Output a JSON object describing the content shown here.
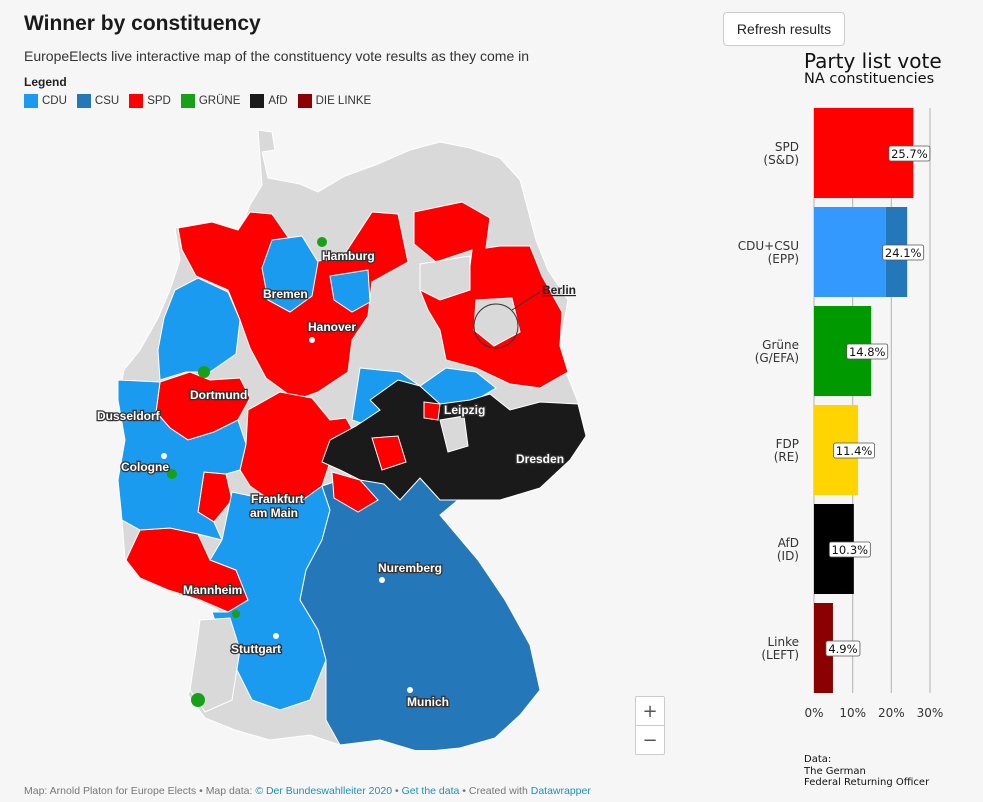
{
  "header": {
    "title": "Winner by constituency",
    "subtitle": "EuropeElects live interactive map of the constituency vote results as they come in"
  },
  "legend": {
    "title": "Legend",
    "items": [
      {
        "label": "CDU",
        "color": "#1a9bf0"
      },
      {
        "label": "CSU",
        "color": "#2477b8"
      },
      {
        "label": "SPD",
        "color": "#ff0000"
      },
      {
        "label": "GRÜNE",
        "color": "#18a018"
      },
      {
        "label": "AfD",
        "color": "#1a1a1a"
      },
      {
        "label": "DIE LINKE",
        "color": "#8b0000"
      }
    ]
  },
  "refresh_label": "Refresh results",
  "map": {
    "cities": [
      "Hamburg",
      "Bremen",
      "Hanover",
      "Berlin",
      "Dortmund",
      "Dusseldorf",
      "Leipzig",
      "Cologne",
      "Dresden",
      "Frankfurt",
      "am Main",
      "Nuremberg",
      "Mannheim",
      "Stuttgart",
      "Munich"
    ],
    "zoom_in": "+",
    "zoom_out": "−",
    "nodata_color": "#d8d8d8"
  },
  "footer": {
    "credit": "Map: Arnold Platon for Europe Elects • Map data: ",
    "source_link": "© Der Bundeswahlleiter 2020",
    "sep1": " • ",
    "data_link": "Get the data",
    "sep2": " • Created with ",
    "tool_link": "Datawrapper"
  },
  "chart": {
    "title": "Party list vote",
    "subtitle": "NA constituencies",
    "source_lines": [
      "Data:",
      "The German",
      "Federal Returning Officer"
    ]
  },
  "chart_data": {
    "type": "bar",
    "orientation": "horizontal",
    "title": "Party list vote",
    "subtitle": "NA constituencies",
    "categories": [
      "SPD (S&D)",
      "CDU+CSU (EPP)",
      "Grüne (G/EFA)",
      "FDP (RE)",
      "AfD (ID)",
      "Linke (LEFT)"
    ],
    "labels": [
      [
        "SPD",
        "(S&D)"
      ],
      [
        "CDU+CSU",
        "(EPP)"
      ],
      [
        "Grüne",
        "(G/EFA)"
      ],
      [
        "FDP",
        "(RE)"
      ],
      [
        "AfD",
        "(ID)"
      ],
      [
        "Linke",
        "(LEFT)"
      ]
    ],
    "values": [
      25.7,
      24.1,
      14.8,
      11.4,
      10.3,
      4.9
    ],
    "value_labels": [
      "25.7%",
      "24.1%",
      "14.8%",
      "11.4%",
      "10.3%",
      "4.9%"
    ],
    "colors": [
      "#ff0000",
      "#3399ff",
      "#009900",
      "#ffd400",
      "#000000",
      "#8b0000"
    ],
    "split": {
      "index": 1,
      "part": 18.6,
      "color2": "#2477b8"
    },
    "xlim": [
      0,
      30
    ],
    "ticks": [
      0,
      10,
      20,
      30
    ],
    "tick_labels": [
      "0%",
      "10%",
      "20%",
      "30%"
    ],
    "grid": true,
    "source": "Data: The German Federal Returning Officer"
  }
}
